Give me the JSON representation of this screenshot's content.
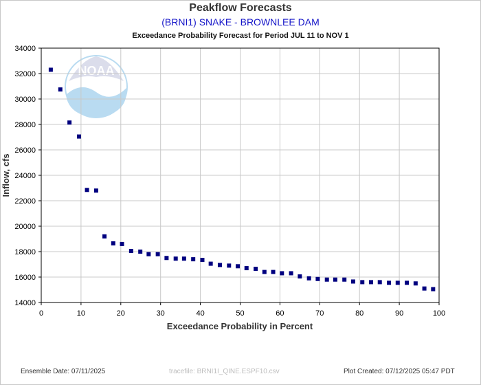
{
  "header": {
    "title": "Peakflow Forecasts",
    "subtitle": "(BRNI1) SNAKE - BROWNLEE DAM",
    "period": "Exceedance Probability Forecast for Period JUL 11 to NOV 1"
  },
  "footer": {
    "ensemble_date": "Ensemble Date: 07/11/2025",
    "tracefile": "tracefile: BRNI1I_QINE.ESPF10.csv",
    "plot_created": "Plot Created: 07/12/2025 05:47 PDT"
  },
  "logo": {
    "text": "NOAA"
  },
  "colors": {
    "marker": "#00007f",
    "grid": "#c8c8c8",
    "axis": "#000000",
    "logo": "#3a9bd9"
  },
  "chart_data": {
    "type": "scatter",
    "title": "Peakflow Forecasts",
    "subtitle": "(BRNI1) SNAKE - BROWNLEE DAM",
    "xlabel": "Exceedance Probability in Percent",
    "ylabel": "Inflow, cfs",
    "xlim": [
      0,
      100
    ],
    "ylim": [
      14000,
      34000
    ],
    "xticks": [
      0,
      10,
      20,
      30,
      40,
      50,
      60,
      70,
      80,
      90,
      100
    ],
    "yticks": [
      14000,
      16000,
      18000,
      20000,
      22000,
      24000,
      26000,
      28000,
      30000,
      32000,
      34000
    ],
    "grid": true,
    "x": [
      2.4,
      4.8,
      7.1,
      9.5,
      11.5,
      13.8,
      15.9,
      18.1,
      20.3,
      22.6,
      24.9,
      27.0,
      29.3,
      31.5,
      33.8,
      35.9,
      38.2,
      40.5,
      42.6,
      44.9,
      47.2,
      49.4,
      51.6,
      53.9,
      56.1,
      58.3,
      60.5,
      62.8,
      65.0,
      67.3,
      69.5,
      71.8,
      73.9,
      76.2,
      78.4,
      80.7,
      82.9,
      85.1,
      87.4,
      89.6,
      91.9,
      94.1,
      96.3,
      98.5
    ],
    "y": [
      32300,
      30750,
      28150,
      27050,
      22850,
      22800,
      19200,
      18650,
      18600,
      18050,
      18000,
      17800,
      17800,
      17500,
      17450,
      17450,
      17400,
      17350,
      17050,
      16950,
      16900,
      16850,
      16700,
      16650,
      16400,
      16400,
      16300,
      16300,
      16050,
      15900,
      15850,
      15800,
      15800,
      15800,
      15650,
      15600,
      15600,
      15600,
      15550,
      15550,
      15550,
      15500,
      15100,
      15050
    ]
  }
}
